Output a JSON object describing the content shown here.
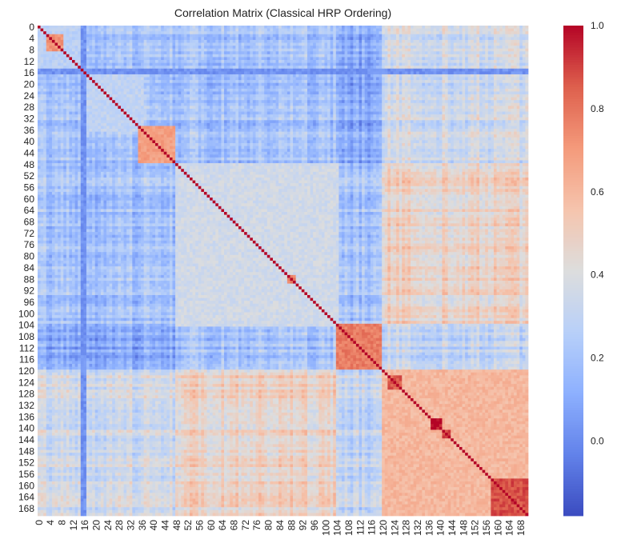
{
  "chart_data": {
    "type": "heatmap",
    "title": "Correlation Matrix (Classical HRP Ordering)",
    "xlabel": "",
    "ylabel": "",
    "n": 171,
    "tick_labels": [
      "0",
      "4",
      "8",
      "12",
      "16",
      "20",
      "24",
      "28",
      "32",
      "36",
      "40",
      "44",
      "48",
      "52",
      "56",
      "60",
      "64",
      "68",
      "72",
      "76",
      "80",
      "84",
      "88",
      "92",
      "96",
      "100",
      "104",
      "108",
      "112",
      "116",
      "120",
      "124",
      "128",
      "132",
      "136",
      "140",
      "144",
      "148",
      "152",
      "156",
      "160",
      "164",
      "168"
    ],
    "tick_step": 4,
    "colormap": "coolwarm",
    "vmin": -0.18,
    "vmax": 1.0,
    "colorbar_ticks": [
      "0.0",
      "0.2",
      "0.4",
      "0.6",
      "0.8",
      "1.0"
    ],
    "colorbar_tick_values": [
      0.0,
      0.2,
      0.4,
      0.6,
      0.8,
      1.0
    ],
    "blocks": [
      {
        "range": [
          0,
          16
        ],
        "corr": 0.28
      },
      {
        "range": [
          3,
          8
        ],
        "corr": 0.72
      },
      {
        "range": [
          16,
          36
        ],
        "corr": 0.3
      },
      {
        "range": [
          35,
          47
        ],
        "corr": 0.68
      },
      {
        "range": [
          48,
          104
        ],
        "corr": 0.36
      },
      {
        "range": [
          87,
          89
        ],
        "corr": 0.78
      },
      {
        "range": [
          104,
          119
        ],
        "corr": 0.78
      },
      {
        "range": [
          120,
          170
        ],
        "corr": 0.6
      },
      {
        "range": [
          122,
          126
        ],
        "corr": 0.85
      },
      {
        "range": [
          137,
          140
        ],
        "corr": 0.97
      },
      {
        "range": [
          141,
          143
        ],
        "corr": 0.9
      },
      {
        "range": [
          158,
          170
        ],
        "corr": 0.88
      }
    ],
    "low_correlation_assets": [
      15,
      16
    ],
    "diagonal_value": 1.0
  }
}
